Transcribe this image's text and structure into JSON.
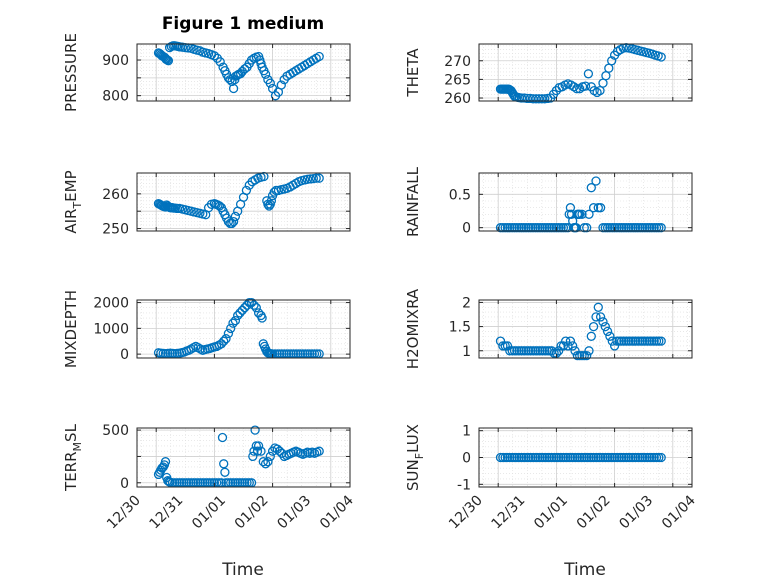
{
  "figure": {
    "title": "Figure 1 medium"
  },
  "chart_data": [
    {
      "type": "scatter",
      "name": "PRESSURE",
      "ylabel": "PRESSURE",
      "yticks": [
        800,
        850,
        900
      ],
      "yticklabels": [
        "800",
        "",
        "900"
      ],
      "ylim": [
        785,
        945
      ],
      "xlim": [
        -0.33,
        3.33
      ],
      "xticks": [
        0,
        1,
        2,
        3
      ],
      "x": [
        0.04,
        0.06,
        0.08,
        0.1,
        0.12,
        0.14,
        0.16,
        0.17,
        0.19,
        0.21,
        0.23,
        0.26,
        0.29,
        0.32,
        0.35,
        0.38,
        0.41,
        0.45,
        0.5,
        0.55,
        0.6,
        0.65,
        0.7,
        0.75,
        0.8,
        0.85,
        0.9,
        0.95,
        1.0,
        1.05,
        1.1,
        1.15,
        1.18,
        1.21,
        1.24,
        1.27,
        1.3,
        1.33,
        1.35,
        1.37,
        1.4,
        1.42,
        1.45,
        1.48,
        1.52,
        1.56,
        1.6,
        1.64,
        1.68,
        1.72,
        1.76,
        1.78,
        1.8,
        1.82,
        1.85,
        1.88,
        1.92,
        1.96,
        2.0,
        2.05,
        2.1,
        2.15,
        2.2,
        2.25,
        2.3,
        2.35,
        2.4,
        2.45,
        2.5,
        2.55,
        2.6,
        2.65,
        2.7,
        2.75,
        2.8
      ],
      "y": [
        920,
        918,
        915,
        912,
        910,
        908,
        905,
        902,
        900,
        898,
        935,
        938,
        940,
        940,
        939,
        938,
        937,
        936,
        935,
        934,
        933,
        930,
        928,
        926,
        922,
        920,
        918,
        915,
        912,
        905,
        895,
        880,
        870,
        860,
        850,
        845,
        840,
        820,
        845,
        855,
        858,
        860,
        862,
        868,
        875,
        880,
        890,
        900,
        905,
        908,
        910,
        900,
        890,
        880,
        870,
        860,
        845,
        835,
        820,
        800,
        810,
        830,
        845,
        855,
        860,
        865,
        870,
        875,
        880,
        885,
        890,
        895,
        900,
        905,
        910
      ]
    },
    {
      "type": "scatter",
      "name": "THETA",
      "ylabel": "THETA",
      "yticks": [
        260,
        265,
        270
      ],
      "yticklabels": [
        "260",
        "265",
        "270"
      ],
      "ylim": [
        259.2,
        274.5
      ],
      "xlim": [
        -0.33,
        3.33
      ],
      "xticks": [
        0,
        1,
        2,
        3
      ],
      "x": [
        0.04,
        0.06,
        0.08,
        0.1,
        0.12,
        0.14,
        0.16,
        0.18,
        0.2,
        0.22,
        0.24,
        0.26,
        0.28,
        0.3,
        0.33,
        0.36,
        0.4,
        0.45,
        0.5,
        0.55,
        0.6,
        0.65,
        0.7,
        0.75,
        0.8,
        0.85,
        0.9,
        0.95,
        1.0,
        1.05,
        1.1,
        1.15,
        1.2,
        1.25,
        1.3,
        1.35,
        1.4,
        1.45,
        1.5,
        1.55,
        1.6,
        1.65,
        1.7,
        1.75,
        1.8,
        1.85,
        1.9,
        1.95,
        2.0,
        2.05,
        2.1,
        2.15,
        2.2,
        2.25,
        2.3,
        2.35,
        2.4,
        2.45,
        2.5,
        2.55,
        2.6,
        2.65,
        2.7,
        2.75,
        2.8
      ],
      "y": [
        262.4,
        262.4,
        262.4,
        262.4,
        262.4,
        262.4,
        262.4,
        262.4,
        262.2,
        262.0,
        261.5,
        261.0,
        260.5,
        260.3,
        260.2,
        260.1,
        260.0,
        260.0,
        259.9,
        259.9,
        259.8,
        259.8,
        259.8,
        259.8,
        259.8,
        259.9,
        260.0,
        261.0,
        262.0,
        262.8,
        263.0,
        263.5,
        263.8,
        263.5,
        263.0,
        262.5,
        262.5,
        263.0,
        263.2,
        266.5,
        263.0,
        262.0,
        261.5,
        262.0,
        264.0,
        266.0,
        268.0,
        270.0,
        271.5,
        272.5,
        273.0,
        273.4,
        273.5,
        273.4,
        273.2,
        273.0,
        272.8,
        272.6,
        272.4,
        272.2,
        272.0,
        271.8,
        271.5,
        271.3,
        271.0
      ]
    },
    {
      "type": "scatter",
      "name": "AIR_TEMP",
      "ylabel": "AIR",
      "ylabel_sub": "T",
      "ylabel_rest": "EMP",
      "yticks": [
        250,
        255,
        260
      ],
      "yticklabels": [
        "250",
        "",
        "260"
      ],
      "ylim": [
        249.3,
        266.0
      ],
      "xlim": [
        -0.33,
        3.33
      ],
      "xticks": [
        0,
        1,
        2,
        3
      ],
      "x": [
        0.04,
        0.06,
        0.08,
        0.1,
        0.12,
        0.14,
        0.16,
        0.18,
        0.2,
        0.22,
        0.24,
        0.26,
        0.28,
        0.3,
        0.33,
        0.36,
        0.4,
        0.45,
        0.5,
        0.55,
        0.6,
        0.65,
        0.7,
        0.75,
        0.8,
        0.85,
        0.9,
        0.95,
        1.0,
        1.03,
        1.06,
        1.09,
        1.12,
        1.15,
        1.18,
        1.21,
        1.24,
        1.27,
        1.3,
        1.33,
        1.36,
        1.4,
        1.45,
        1.5,
        1.55,
        1.6,
        1.65,
        1.7,
        1.75,
        1.8,
        1.85,
        1.9,
        1.92,
        1.94,
        1.96,
        1.98,
        2.0,
        2.03,
        2.06,
        2.1,
        2.15,
        2.2,
        2.25,
        2.3,
        2.35,
        2.4,
        2.45,
        2.5,
        2.55,
        2.6,
        2.65,
        2.7,
        2.75,
        2.8
      ],
      "y": [
        257.2,
        257.0,
        256.8,
        256.6,
        256.4,
        256.3,
        256.2,
        256.8,
        256.5,
        256.2,
        256.0,
        256.0,
        256.0,
        255.9,
        255.9,
        255.8,
        255.8,
        255.6,
        255.4,
        255.2,
        255.0,
        254.8,
        254.6,
        254.4,
        254.2,
        254.0,
        256.0,
        257.0,
        257.2,
        257.0,
        256.8,
        256.5,
        256.0,
        255.0,
        254.0,
        253.0,
        252.0,
        251.5,
        251.5,
        252.0,
        253.5,
        255.0,
        257.0,
        259.0,
        261.0,
        262.5,
        263.5,
        264.0,
        264.5,
        264.8,
        265.0,
        258.0,
        257.0,
        256.5,
        257.0,
        258.0,
        259.5,
        260.5,
        261.0,
        261.0,
        261.2,
        261.4,
        261.6,
        262.0,
        262.5,
        263.0,
        263.5,
        263.8,
        264.0,
        264.2,
        264.3,
        264.4,
        264.5,
        264.5
      ]
    },
    {
      "type": "scatter",
      "name": "RAINFALL",
      "ylabel": "RAINFALL",
      "yticks": [
        0,
        0.5
      ],
      "yticklabels": [
        "0",
        "0.5"
      ],
      "ylim": [
        -0.05,
        0.82
      ],
      "xlim": [
        -0.33,
        3.33
      ],
      "xticks": [
        0,
        1,
        2,
        3
      ],
      "x": [
        0.04,
        0.08,
        0.12,
        0.16,
        0.2,
        0.24,
        0.28,
        0.32,
        0.36,
        0.4,
        0.44,
        0.48,
        0.52,
        0.56,
        0.6,
        0.64,
        0.68,
        0.72,
        0.76,
        0.8,
        0.84,
        0.88,
        0.92,
        0.96,
        1.0,
        1.04,
        1.08,
        1.12,
        1.16,
        1.2,
        1.22,
        1.24,
        1.26,
        1.28,
        1.3,
        1.32,
        1.34,
        1.36,
        1.38,
        1.4,
        1.44,
        1.48,
        1.52,
        1.56,
        1.6,
        1.64,
        1.68,
        1.72,
        1.76,
        1.8,
        1.84,
        1.88,
        1.92,
        1.96,
        2.0,
        2.04,
        2.08,
        2.12,
        2.16,
        2.2,
        2.24,
        2.28,
        2.32,
        2.36,
        2.4,
        2.44,
        2.48,
        2.52,
        2.56,
        2.6,
        2.64,
        2.68,
        2.72,
        2.76,
        2.8
      ],
      "y": [
        0,
        0,
        0,
        0,
        0,
        0,
        0,
        0,
        0,
        0,
        0,
        0,
        0,
        0,
        0,
        0,
        0,
        0,
        0,
        0,
        0,
        0,
        0,
        0,
        0,
        0,
        0,
        0,
        0,
        0,
        0.2,
        0.3,
        0.2,
        0.1,
        0,
        0,
        0,
        0.2,
        0.2,
        0.2,
        0.2,
        0,
        0,
        0.2,
        0.6,
        0.3,
        0.7,
        0.3,
        0.3,
        0,
        0,
        0,
        0,
        0,
        0,
        0,
        0,
        0,
        0,
        0,
        0,
        0,
        0,
        0,
        0,
        0,
        0,
        0,
        0,
        0,
        0,
        0,
        0,
        0,
        0
      ]
    },
    {
      "type": "scatter",
      "name": "MIXDEPTH",
      "ylabel": "MIXDEPTH",
      "yticks": [
        0,
        1000,
        2000
      ],
      "yticklabels": [
        "0",
        "1000",
        "2000"
      ],
      "ylim": [
        -150,
        2100
      ],
      "xlim": [
        -0.33,
        3.33
      ],
      "xticks": [
        0,
        1,
        2,
        3
      ],
      "x": [
        0.04,
        0.08,
        0.12,
        0.16,
        0.2,
        0.24,
        0.28,
        0.32,
        0.36,
        0.4,
        0.44,
        0.48,
        0.52,
        0.56,
        0.6,
        0.64,
        0.68,
        0.72,
        0.76,
        0.8,
        0.84,
        0.88,
        0.92,
        0.96,
        1.0,
        1.04,
        1.08,
        1.12,
        1.16,
        1.2,
        1.24,
        1.28,
        1.32,
        1.36,
        1.4,
        1.44,
        1.48,
        1.52,
        1.56,
        1.6,
        1.64,
        1.68,
        1.72,
        1.76,
        1.8,
        1.82,
        1.84,
        1.86,
        1.88,
        1.9,
        1.92,
        1.94,
        1.96,
        1.98,
        2.0,
        2.04,
        2.08,
        2.12,
        2.16,
        2.2,
        2.24,
        2.28,
        2.32,
        2.36,
        2.4,
        2.44,
        2.48,
        2.52,
        2.56,
        2.6,
        2.64,
        2.68,
        2.72,
        2.76,
        2.8
      ],
      "y": [
        50,
        40,
        30,
        20,
        30,
        40,
        30,
        20,
        30,
        40,
        60,
        80,
        120,
        150,
        200,
        250,
        300,
        250,
        200,
        150,
        180,
        200,
        220,
        250,
        280,
        300,
        350,
        400,
        500,
        600,
        800,
        1000,
        1200,
        1300,
        1500,
        1600,
        1700,
        1800,
        1900,
        2000,
        2000,
        1900,
        1800,
        1600,
        1500,
        1400,
        400,
        300,
        200,
        100,
        50,
        30,
        20,
        10,
        10,
        10,
        10,
        10,
        10,
        10,
        10,
        10,
        10,
        10,
        10,
        10,
        10,
        10,
        10,
        10,
        10,
        10,
        10,
        10,
        10
      ]
    },
    {
      "type": "scatter",
      "name": "H2OMIXRA",
      "ylabel": "H2OMIXRA",
      "yticks": [
        1,
        1.5,
        2
      ],
      "yticklabels": [
        "1",
        "1.5",
        "2"
      ],
      "ylim": [
        0.85,
        2.05
      ],
      "xlim": [
        -0.33,
        3.33
      ],
      "xticks": [
        0,
        1,
        2,
        3
      ],
      "x": [
        0.04,
        0.08,
        0.12,
        0.16,
        0.2,
        0.24,
        0.28,
        0.32,
        0.36,
        0.4,
        0.44,
        0.48,
        0.52,
        0.56,
        0.6,
        0.64,
        0.68,
        0.72,
        0.76,
        0.8,
        0.84,
        0.88,
        0.92,
        0.96,
        1.0,
        1.04,
        1.08,
        1.12,
        1.16,
        1.2,
        1.24,
        1.28,
        1.32,
        1.36,
        1.4,
        1.44,
        1.48,
        1.52,
        1.56,
        1.6,
        1.64,
        1.68,
        1.72,
        1.76,
        1.8,
        1.84,
        1.88,
        1.92,
        1.96,
        2.0,
        2.04,
        2.08,
        2.12,
        2.16,
        2.2,
        2.24,
        2.28,
        2.32,
        2.36,
        2.4,
        2.44,
        2.48,
        2.52,
        2.56,
        2.6,
        2.64,
        2.68,
        2.72,
        2.76,
        2.8
      ],
      "y": [
        1.2,
        1.1,
        1.1,
        1.1,
        1.0,
        1.0,
        1.0,
        1.0,
        1.0,
        1.0,
        1.0,
        1.0,
        1.0,
        1.0,
        1.0,
        1.0,
        1.0,
        1.0,
        1.0,
        1.0,
        1.0,
        1.0,
        1.0,
        0.95,
        0.95,
        1.0,
        1.1,
        1.1,
        1.2,
        1.1,
        1.2,
        1.1,
        1.0,
        0.9,
        0.9,
        0.9,
        0.9,
        0.9,
        1.0,
        1.3,
        1.5,
        1.7,
        1.9,
        1.7,
        1.6,
        1.5,
        1.4,
        1.3,
        1.2,
        1.1,
        1.2,
        1.2,
        1.2,
        1.2,
        1.2,
        1.2,
        1.2,
        1.2,
        1.2,
        1.2,
        1.2,
        1.2,
        1.2,
        1.2,
        1.2,
        1.2,
        1.2,
        1.2,
        1.2,
        1.2
      ]
    },
    {
      "type": "scatter",
      "name": "TERR_MSL",
      "ylabel": "TERR",
      "ylabel_sub": "M",
      "ylabel_rest": "SL",
      "yticks": [
        0,
        250,
        500
      ],
      "yticklabels": [
        "0",
        "",
        "500"
      ],
      "ylim": [
        -40,
        520
      ],
      "xlim": [
        -0.33,
        3.33
      ],
      "xticks": [
        0,
        1,
        2,
        3
      ],
      "x": [
        0.04,
        0.06,
        0.08,
        0.1,
        0.12,
        0.14,
        0.16,
        0.18,
        0.2,
        0.22,
        0.24,
        0.28,
        0.32,
        0.36,
        0.4,
        0.44,
        0.48,
        0.52,
        0.56,
        0.6,
        0.64,
        0.68,
        0.72,
        0.76,
        0.8,
        0.84,
        0.88,
        0.92,
        0.96,
        1.0,
        1.04,
        1.08,
        1.12,
        1.14,
        1.16,
        1.18,
        1.2,
        1.24,
        1.28,
        1.32,
        1.36,
        1.4,
        1.44,
        1.48,
        1.52,
        1.56,
        1.6,
        1.64,
        1.66,
        1.68,
        1.7,
        1.72,
        1.74,
        1.76,
        1.8,
        1.84,
        1.88,
        1.92,
        1.96,
        2.0,
        2.04,
        2.08,
        2.12,
        2.16,
        2.2,
        2.24,
        2.28,
        2.32,
        2.36,
        2.4,
        2.44,
        2.48,
        2.52,
        2.56,
        2.6,
        2.64,
        2.68,
        2.72,
        2.76,
        2.8
      ],
      "y": [
        80,
        100,
        120,
        140,
        150,
        170,
        200,
        50,
        20,
        10,
        5,
        0,
        0,
        0,
        0,
        0,
        0,
        0,
        0,
        0,
        0,
        0,
        0,
        0,
        0,
        0,
        0,
        0,
        0,
        0,
        0,
        0,
        0,
        430,
        180,
        100,
        0,
        0,
        0,
        0,
        0,
        0,
        0,
        0,
        0,
        0,
        0,
        0,
        250,
        300,
        500,
        350,
        300,
        350,
        300,
        200,
        180,
        200,
        250,
        300,
        330,
        320,
        300,
        280,
        250,
        260,
        270,
        280,
        290,
        300,
        290,
        280,
        270,
        280,
        290,
        280,
        290,
        280,
        290,
        300
      ]
    },
    {
      "type": "scatter",
      "name": "SUN_FLUX",
      "ylabel": "SUN",
      "ylabel_sub": "F",
      "ylabel_rest": "LUX",
      "yticks": [
        -1,
        0,
        1
      ],
      "yticklabels": [
        "-1",
        "0",
        "1"
      ],
      "ylim": [
        -1.1,
        1.1
      ],
      "xlim": [
        -0.33,
        3.33
      ],
      "xticks": [
        0,
        1,
        2,
        3
      ],
      "x": [
        0.04,
        0.08,
        0.12,
        0.16,
        0.2,
        0.24,
        0.28,
        0.32,
        0.36,
        0.4,
        0.44,
        0.48,
        0.52,
        0.56,
        0.6,
        0.64,
        0.68,
        0.72,
        0.76,
        0.8,
        0.84,
        0.88,
        0.92,
        0.96,
        1.0,
        1.04,
        1.08,
        1.12,
        1.16,
        1.2,
        1.24,
        1.28,
        1.32,
        1.36,
        1.4,
        1.44,
        1.48,
        1.52,
        1.56,
        1.6,
        1.64,
        1.68,
        1.72,
        1.76,
        1.8,
        1.84,
        1.88,
        1.92,
        1.96,
        2.0,
        2.04,
        2.08,
        2.12,
        2.16,
        2.2,
        2.24,
        2.28,
        2.32,
        2.36,
        2.4,
        2.44,
        2.48,
        2.52,
        2.56,
        2.6,
        2.64,
        2.68,
        2.72,
        2.76,
        2.8
      ],
      "y": [
        0,
        0,
        0,
        0,
        0,
        0,
        0,
        0,
        0,
        0,
        0,
        0,
        0,
        0,
        0,
        0,
        0,
        0,
        0,
        0,
        0,
        0,
        0,
        0,
        0,
        0,
        0,
        0,
        0,
        0,
        0,
        0,
        0,
        0,
        0,
        0,
        0,
        0,
        0,
        0,
        0,
        0,
        0,
        0,
        0,
        0,
        0,
        0,
        0,
        0,
        0,
        0,
        0,
        0,
        0,
        0,
        0,
        0,
        0,
        0,
        0,
        0,
        0,
        0,
        0,
        0,
        0,
        0,
        0,
        0
      ]
    }
  ],
  "x_axis": {
    "ticklabels": [
      "12/30",
      "12/31",
      "01/01",
      "01/02",
      "01/03",
      "01/04"
    ],
    "label": "Time"
  },
  "colors": {
    "marker": "#0072BD",
    "axes": "#262626",
    "grid": "#d0d0d0"
  }
}
